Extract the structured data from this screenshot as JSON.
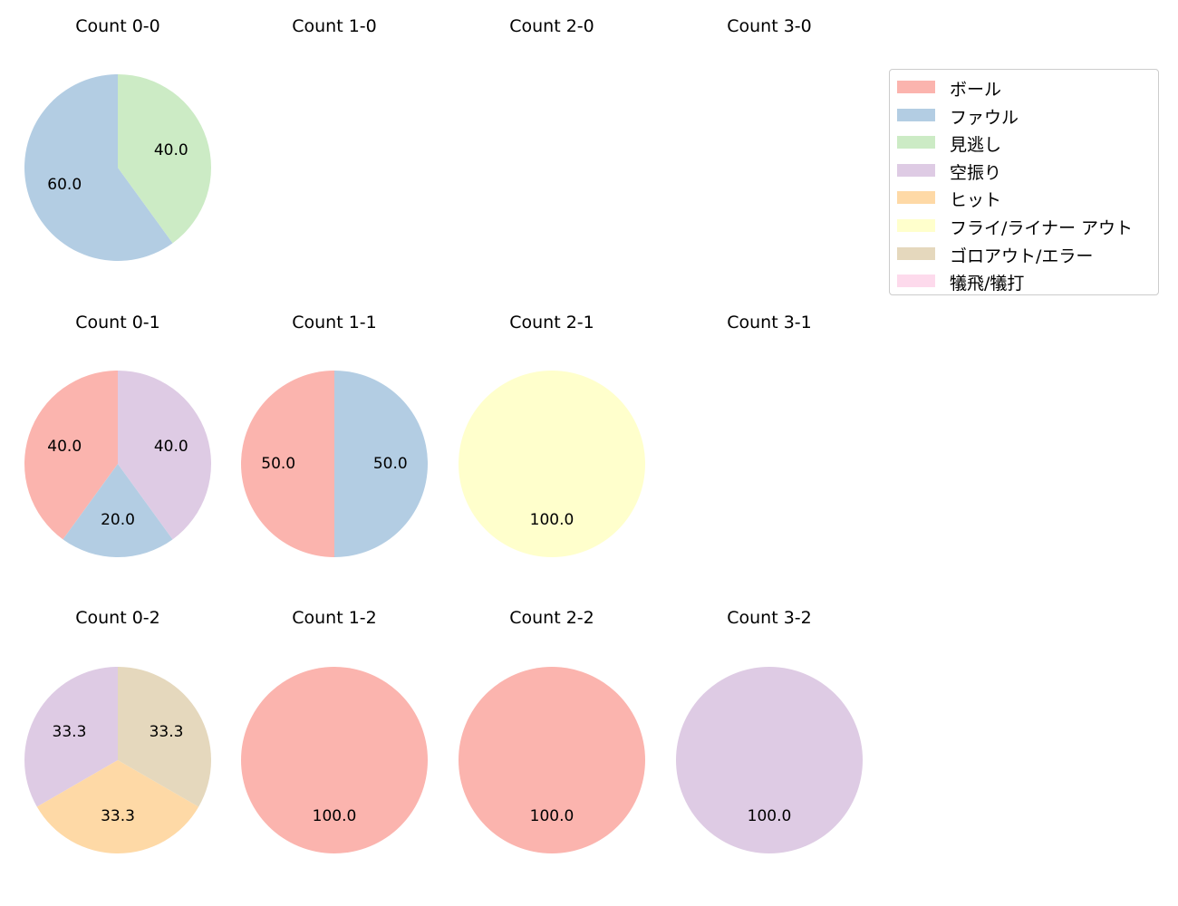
{
  "chart_data": {
    "type": "pie",
    "legend_position": "top-right",
    "legend": [
      {
        "label": "ボール",
        "color": "#fbb4ae"
      },
      {
        "label": "ファウル",
        "color": "#b3cde3"
      },
      {
        "label": "見逃し",
        "color": "#ccebc5"
      },
      {
        "label": "空振り",
        "color": "#decbe4"
      },
      {
        "label": "ヒット",
        "color": "#fed9a6"
      },
      {
        "label": "フライ/ライナー アウト",
        "color": "#ffffcc"
      },
      {
        "label": "ゴロアウト/エラー",
        "color": "#e5d8bd"
      },
      {
        "label": "犠飛/犠打",
        "color": "#fddaec"
      }
    ],
    "charts": [
      {
        "title": "Count 0-0",
        "slices": [
          {
            "category": "ファウル",
            "value": 60.0
          },
          {
            "category": "見逃し",
            "value": 40.0
          }
        ]
      },
      {
        "title": "Count 1-0",
        "slices": []
      },
      {
        "title": "Count 2-0",
        "slices": []
      },
      {
        "title": "Count 3-0",
        "slices": []
      },
      {
        "title": "Count 0-1",
        "slices": [
          {
            "category": "ボール",
            "value": 40.0
          },
          {
            "category": "ファウル",
            "value": 20.0
          },
          {
            "category": "空振り",
            "value": 40.0
          }
        ]
      },
      {
        "title": "Count 1-1",
        "slices": [
          {
            "category": "ボール",
            "value": 50.0
          },
          {
            "category": "ファウル",
            "value": 50.0
          }
        ]
      },
      {
        "title": "Count 2-1",
        "slices": [
          {
            "category": "フライ/ライナー アウト",
            "value": 100.0
          }
        ]
      },
      {
        "title": "Count 3-1",
        "slices": []
      },
      {
        "title": "Count 0-2",
        "slices": [
          {
            "category": "空振り",
            "value": 33.3
          },
          {
            "category": "ヒット",
            "value": 33.3
          },
          {
            "category": "ゴロアウト/エラー",
            "value": 33.3
          }
        ]
      },
      {
        "title": "Count 1-2",
        "slices": [
          {
            "category": "ボール",
            "value": 100.0
          }
        ]
      },
      {
        "title": "Count 2-2",
        "slices": [
          {
            "category": "ボール",
            "value": 100.0
          }
        ]
      },
      {
        "title": "Count 3-2",
        "slices": [
          {
            "category": "空振り",
            "value": 100.0
          }
        ]
      }
    ]
  }
}
